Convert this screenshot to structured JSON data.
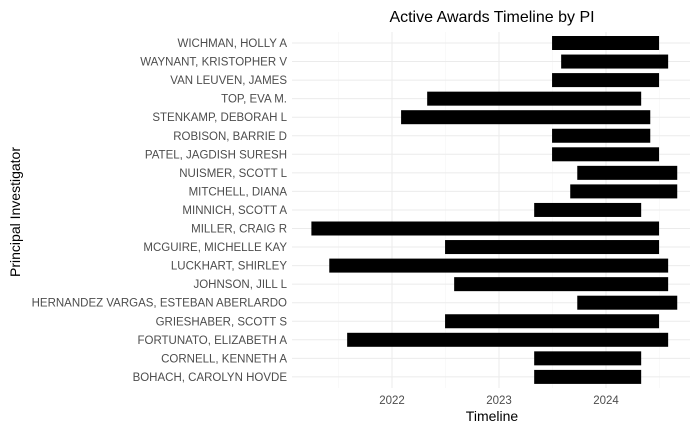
{
  "chart_data": {
    "type": "bar",
    "orientation": "horizontal",
    "title": "Active Awards Timeline by PI",
    "xlabel": "Timeline",
    "ylabel": "Principal Investigator",
    "x_ticks": [
      "2022",
      "2023",
      "2024"
    ],
    "x_range": [
      "2021-03-01",
      "2024-09-01"
    ],
    "grid": true,
    "legend": "none",
    "bar_color": "#000000",
    "series": [
      {
        "name": "WICHMAN, HOLLY A",
        "start": "2023-07-01",
        "end": "2024-06-30"
      },
      {
        "name": "WAYNANT, KRISTOPHER V",
        "start": "2023-08-01",
        "end": "2024-07-31"
      },
      {
        "name": "VAN LEUVEN, JAMES",
        "start": "2023-07-01",
        "end": "2024-06-30"
      },
      {
        "name": "TOP, EVA M.",
        "start": "2022-05-01",
        "end": "2024-04-30"
      },
      {
        "name": "STENKAMP, DEBORAH L",
        "start": "2022-02-01",
        "end": "2024-05-31"
      },
      {
        "name": "ROBISON, BARRIE D",
        "start": "2023-07-01",
        "end": "2024-05-31"
      },
      {
        "name": "PATEL, JAGDISH SURESH",
        "start": "2023-07-01",
        "end": "2024-06-30"
      },
      {
        "name": "NUISMER, SCOTT L",
        "start": "2023-09-25",
        "end": "2024-08-31"
      },
      {
        "name": "MITCHELL, DIANA",
        "start": "2023-09-01",
        "end": "2024-08-31"
      },
      {
        "name": "MINNICH, SCOTT A",
        "start": "2023-05-01",
        "end": "2024-04-30"
      },
      {
        "name": "MILLER, CRAIG R",
        "start": "2021-04-01",
        "end": "2024-06-30"
      },
      {
        "name": "MCGUIRE, MICHELLE KAY",
        "start": "2022-07-01",
        "end": "2024-06-30"
      },
      {
        "name": "LUCKHART, SHIRLEY",
        "start": "2021-06-01",
        "end": "2024-07-31"
      },
      {
        "name": "JOHNSON, JILL L",
        "start": "2022-08-01",
        "end": "2024-07-31"
      },
      {
        "name": "HERNANDEZ VARGAS, ESTEBAN ABERLARDO",
        "start": "2023-09-25",
        "end": "2024-08-31"
      },
      {
        "name": "GRIESHABER, SCOTT S",
        "start": "2022-07-01",
        "end": "2024-06-30"
      },
      {
        "name": "FORTUNATO, ELIZABETH A",
        "start": "2021-08-01",
        "end": "2024-07-31"
      },
      {
        "name": "CORNELL, KENNETH A",
        "start": "2023-05-01",
        "end": "2024-04-30"
      },
      {
        "name": "BOHACH, CAROLYN HOVDE",
        "start": "2023-05-01",
        "end": "2024-04-30"
      }
    ]
  }
}
